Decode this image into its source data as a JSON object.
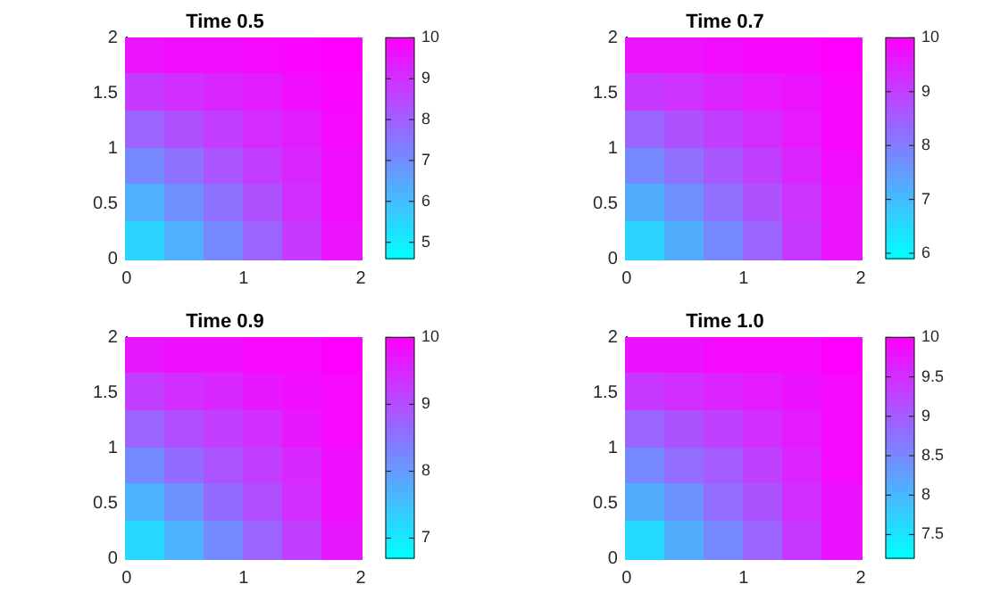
{
  "chart_data": [
    {
      "type": "heatmap",
      "title": "Time 0.5",
      "x": [
        0.1667,
        0.5,
        0.8333,
        1.1667,
        1.5,
        1.8333
      ],
      "y": [
        1.8333,
        1.5,
        1.1667,
        0.8333,
        0.5,
        0.1667
      ],
      "xlim": [
        0,
        2
      ],
      "xticks": [
        0,
        1,
        2
      ],
      "ylim": [
        0,
        2
      ],
      "yticks": [
        0,
        0.5,
        1,
        1.5,
        2
      ],
      "clim": [
        4.6,
        10
      ],
      "cticks": [
        5,
        6,
        7,
        8,
        9,
        10
      ],
      "cells": [
        [
          9.6,
          9.7,
          9.7,
          9.8,
          9.9,
          10.0
        ],
        [
          8.8,
          9.0,
          9.2,
          9.4,
          9.7,
          9.9
        ],
        [
          7.9,
          8.3,
          8.7,
          9.1,
          9.4,
          9.8
        ],
        [
          7.1,
          7.6,
          8.2,
          8.7,
          9.2,
          9.7
        ],
        [
          6.3,
          7.0,
          7.6,
          8.3,
          9.0,
          9.7
        ],
        [
          5.5,
          6.3,
          7.1,
          7.9,
          8.8,
          9.6
        ]
      ]
    },
    {
      "type": "heatmap",
      "title": "Time 0.7",
      "x": [
        0.1667,
        0.5,
        0.8333,
        1.1667,
        1.5,
        1.8333
      ],
      "y": [
        1.8333,
        1.5,
        1.1667,
        0.8333,
        0.5,
        0.1667
      ],
      "xlim": [
        0,
        2
      ],
      "xticks": [
        0,
        1,
        2
      ],
      "ylim": [
        0,
        2
      ],
      "yticks": [
        0,
        0.5,
        1,
        1.5,
        2
      ],
      "clim": [
        5.9,
        10
      ],
      "cticks": [
        6,
        7,
        8,
        9,
        10
      ],
      "cells": [
        [
          9.7,
          9.7,
          9.8,
          9.9,
          9.9,
          10.0
        ],
        [
          9.1,
          9.2,
          9.4,
          9.6,
          9.7,
          9.9
        ],
        [
          8.4,
          8.7,
          9.0,
          9.3,
          9.6,
          9.9
        ],
        [
          7.8,
          8.2,
          8.6,
          9.0,
          9.4,
          9.8
        ],
        [
          7.2,
          7.7,
          8.2,
          8.7,
          9.2,
          9.7
        ],
        [
          6.6,
          7.2,
          7.8,
          8.4,
          9.1,
          9.7
        ]
      ]
    },
    {
      "type": "heatmap",
      "title": "Time 0.9",
      "x": [
        0.1667,
        0.5,
        0.8333,
        1.1667,
        1.5,
        1.8333
      ],
      "y": [
        1.8333,
        1.5,
        1.1667,
        0.8333,
        0.5,
        0.1667
      ],
      "xlim": [
        0,
        2
      ],
      "xticks": [
        0,
        1,
        2
      ],
      "ylim": [
        0,
        2
      ],
      "yticks": [
        0,
        0.5,
        1,
        1.5,
        2
      ],
      "clim": [
        6.7,
        10
      ],
      "cticks": [
        7,
        8,
        9,
        10
      ],
      "cells": [
        [
          9.7,
          9.8,
          9.8,
          9.9,
          9.9,
          10.0
        ],
        [
          9.2,
          9.4,
          9.5,
          9.7,
          9.8,
          9.9
        ],
        [
          8.7,
          9.0,
          9.2,
          9.4,
          9.7,
          9.9
        ],
        [
          8.2,
          8.6,
          8.9,
          9.2,
          9.5,
          9.8
        ],
        [
          7.7,
          8.1,
          8.6,
          9.0,
          9.4,
          9.8
        ],
        [
          7.2,
          7.7,
          8.2,
          8.7,
          9.2,
          9.7
        ]
      ]
    },
    {
      "type": "heatmap",
      "title": "Time 1.0",
      "x": [
        0.1667,
        0.5,
        0.8333,
        1.1667,
        1.5,
        1.8333
      ],
      "y": [
        1.8333,
        1.5,
        1.1667,
        0.8333,
        0.5,
        0.1667
      ],
      "xlim": [
        0,
        2
      ],
      "xticks": [
        0,
        1,
        2
      ],
      "ylim": [
        0,
        2
      ],
      "yticks": [
        0,
        0.5,
        1,
        1.5,
        2
      ],
      "clim": [
        7.2,
        10
      ],
      "cticks": [
        7.5,
        8,
        8.5,
        9,
        9.5,
        10
      ],
      "cells": [
        [
          9.8,
          9.8,
          9.9,
          9.9,
          9.9,
          10.0
        ],
        [
          9.4,
          9.5,
          9.6,
          9.7,
          9.8,
          9.9
        ],
        [
          8.9,
          9.1,
          9.3,
          9.5,
          9.7,
          9.9
        ],
        [
          8.5,
          8.8,
          9.0,
          9.3,
          9.6,
          9.9
        ],
        [
          8.1,
          8.4,
          8.8,
          9.1,
          9.5,
          9.8
        ],
        [
          7.6,
          8.1,
          8.5,
          8.9,
          9.4,
          9.8
        ]
      ]
    }
  ]
}
